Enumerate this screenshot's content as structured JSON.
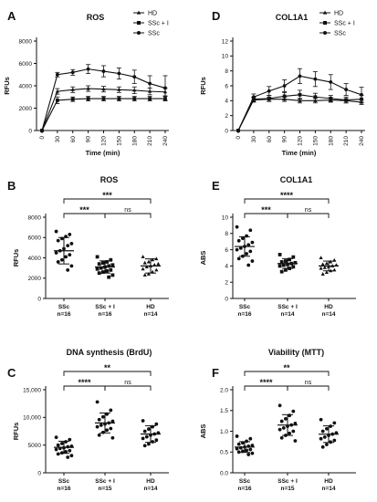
{
  "panels": [
    {
      "letter": "A",
      "chart_data": {
        "type": "line",
        "title": "ROS",
        "xlabel": "Time (min)",
        "ylabel": "RFUs",
        "x": [
          0,
          30,
          60,
          90,
          120,
          150,
          180,
          210,
          240
        ],
        "xticks": [
          "0",
          "30",
          "60",
          "90",
          "120",
          "150",
          "180",
          "210",
          "240"
        ],
        "ylim": [
          0,
          8000
        ],
        "yticks": [
          "0",
          "2000",
          "4000",
          "6000",
          "8000"
        ],
        "legend_position": "top-right",
        "series": [
          {
            "name": "HD",
            "marker": "triangle",
            "values": [
              0,
              3500,
              3650,
              3750,
              3700,
              3650,
              3600,
              3500,
              3450
            ],
            "err": [
              0,
              250,
              250,
              250,
              250,
              250,
              300,
              300,
              350
            ]
          },
          {
            "name": "SSc + I",
            "marker": "square",
            "values": [
              0,
              2700,
              2800,
              2850,
              2850,
              2850,
              2850,
              2850,
              2850
            ],
            "err": [
              0,
              300,
              200,
              200,
              200,
              200,
              200,
              200,
              200
            ]
          },
          {
            "name": "SSc",
            "marker": "circle",
            "values": [
              0,
              5000,
              5200,
              5500,
              5300,
              5100,
              4800,
              4200,
              3800
            ],
            "err": [
              0,
              200,
              250,
              400,
              500,
              500,
              600,
              700,
              1100
            ]
          }
        ]
      }
    },
    {
      "letter": "D",
      "chart_data": {
        "type": "line",
        "title": "COL1A1",
        "xlabel": "Time (min)",
        "ylabel": "RFUs",
        "x": [
          0,
          30,
          60,
          90,
          120,
          150,
          180,
          210,
          240
        ],
        "xticks": [
          "0",
          "30",
          "60",
          "90",
          "120",
          "150",
          "180",
          "210",
          "240"
        ],
        "ylim": [
          0,
          12
        ],
        "yticks": [
          "0",
          "2",
          "4",
          "6",
          "8",
          "10",
          "12"
        ],
        "legend_position": "top-right",
        "series": [
          {
            "name": "HD",
            "marker": "triangle",
            "values": [
              0,
              4.1,
              4.2,
              4.2,
              4.0,
              4.0,
              4.1,
              4.0,
              3.8
            ],
            "err": [
              0,
              0.3,
              0.3,
              0.3,
              0.3,
              0.3,
              0.3,
              0.3,
              0.3
            ]
          },
          {
            "name": "SSc + I",
            "marker": "square",
            "values": [
              0,
              4.2,
              4.3,
              4.6,
              4.8,
              4.5,
              4.3,
              4.1,
              4.2
            ],
            "err": [
              0,
              0.3,
              0.4,
              0.5,
              0.6,
              0.5,
              0.4,
              0.4,
              0.5
            ]
          },
          {
            "name": "SSc",
            "marker": "circle",
            "values": [
              0,
              4.5,
              5.3,
              6.0,
              7.3,
              6.9,
              6.5,
              5.5,
              4.8
            ],
            "err": [
              0,
              0.4,
              0.6,
              0.8,
              1.0,
              1.0,
              1.0,
              0.8,
              1.0
            ]
          }
        ]
      }
    },
    {
      "letter": "B",
      "chart_data": {
        "type": "scatter",
        "title": "ROS",
        "ylabel": "RFUs",
        "ylim": [
          0,
          8000
        ],
        "yticks": [
          "0",
          "2000",
          "4000",
          "6000",
          "8000"
        ],
        "groups": [
          {
            "name": "SSc",
            "n": "n=16",
            "marker": "circle",
            "mean": 4700,
            "sd": 1300,
            "values": [
              6600,
              6300,
              6100,
              5900,
              5700,
              5400,
              5200,
              4900,
              4700,
              4500,
              4300,
              4100,
              3800,
              3600,
              3200,
              2800
            ]
          },
          {
            "name": "SSc + I",
            "n": "n=16",
            "marker": "square",
            "mean": 3100,
            "sd": 600,
            "values": [
              4100,
              3800,
              3600,
              3500,
              3400,
              3300,
              3200,
              3100,
              3000,
              2900,
              2800,
              2700,
              2600,
              2500,
              2300,
              2100
            ]
          },
          {
            "name": "HD",
            "n": "n=14",
            "marker": "triangle",
            "mean": 3200,
            "sd": 700,
            "values": [
              4100,
              3900,
              3800,
              3600,
              3500,
              3400,
              3300,
              3200,
              3100,
              2900,
              2800,
              2600,
              2400,
              2300
            ]
          }
        ],
        "comparisons": [
          {
            "from": 0,
            "to": 1,
            "label": "***",
            "level": 1
          },
          {
            "from": 1,
            "to": 2,
            "label": "ns",
            "level": 1
          },
          {
            "from": 0,
            "to": 2,
            "label": "***",
            "level": 2
          }
        ]
      }
    },
    {
      "letter": "E",
      "chart_data": {
        "type": "scatter",
        "title": "COL1A1",
        "ylabel": "ABS",
        "ylim": [
          0,
          10
        ],
        "yticks": [
          "0",
          "2",
          "4",
          "6",
          "8",
          "10"
        ],
        "groups": [
          {
            "name": "SSc",
            "n": "n=16",
            "marker": "circle",
            "mean": 6.4,
            "sd": 1.2,
            "values": [
              8.8,
              8.4,
              7.7,
              7.4,
              7.1,
              6.9,
              6.6,
              6.4,
              6.2,
              6.0,
              5.8,
              5.5,
              5.2,
              4.9,
              4.6,
              4.1
            ]
          },
          {
            "name": "SSc + I",
            "n": "n=14",
            "marker": "square",
            "mean": 4.3,
            "sd": 0.6,
            "values": [
              5.4,
              5.1,
              4.8,
              4.6,
              4.5,
              4.4,
              4.3,
              4.2,
              4.1,
              4.0,
              3.9,
              3.7,
              3.5,
              3.3
            ]
          },
          {
            "name": "HD",
            "n": "n=14",
            "marker": "triangle",
            "mean": 4.0,
            "sd": 0.6,
            "values": [
              5.0,
              4.7,
              4.5,
              4.3,
              4.2,
              4.1,
              4.0,
              3.9,
              3.8,
              3.7,
              3.5,
              3.4,
              3.2,
              3.0
            ]
          }
        ],
        "comparisons": [
          {
            "from": 0,
            "to": 1,
            "label": "***",
            "level": 1
          },
          {
            "from": 1,
            "to": 2,
            "label": "ns",
            "level": 1
          },
          {
            "from": 0,
            "to": 2,
            "label": "****",
            "level": 2
          }
        ]
      }
    },
    {
      "letter": "C",
      "chart_data": {
        "type": "scatter",
        "title": "DNA synthesis (BrdU)",
        "ylabel": "RFUs",
        "ylim": [
          0,
          15000
        ],
        "yticks": [
          "0",
          "5000",
          "10,000",
          "15,000"
        ],
        "groups": [
          {
            "name": "SSc",
            "n": "n=16",
            "marker": "circle",
            "mean": 4600,
            "sd": 1100,
            "values": [
              6400,
              6000,
              5600,
              5300,
              5000,
              4800,
              4700,
              4500,
              4400,
              4200,
              4000,
              3800,
              3600,
              3400,
              3100,
              2800
            ]
          },
          {
            "name": "SSc + I",
            "n": "n=15",
            "marker": "circle",
            "mean": 9000,
            "sd": 1800,
            "values": [
              12800,
              11300,
              10600,
              10100,
              9600,
              9300,
              9000,
              8800,
              8600,
              8300,
              8000,
              7700,
              7300,
              6800,
              6300
            ]
          },
          {
            "name": "HD",
            "n": "n=14",
            "marker": "circle",
            "mean": 7000,
            "sd": 1500,
            "values": [
              9400,
              8800,
              8300,
              7900,
              7500,
              7200,
              7000,
              6800,
              6500,
              6200,
              5900,
              5600,
              5200,
              4900
            ]
          }
        ],
        "comparisons": [
          {
            "from": 0,
            "to": 1,
            "label": "****",
            "level": 1
          },
          {
            "from": 1,
            "to": 2,
            "label": "ns",
            "level": 1
          },
          {
            "from": 0,
            "to": 2,
            "label": "**",
            "level": 2
          }
        ]
      }
    },
    {
      "letter": "F",
      "chart_data": {
        "type": "scatter",
        "title": "Viability (MTT)",
        "ylabel": "ABS",
        "ylim": [
          0,
          2.0
        ],
        "yticks": [
          "0.0",
          "0.5",
          "1.0",
          "1.5",
          "2.0"
        ],
        "groups": [
          {
            "name": "SSc",
            "n": "n=16",
            "marker": "circle",
            "mean": 0.62,
            "sd": 0.13,
            "values": [
              0.88,
              0.82,
              0.76,
              0.72,
              0.69,
              0.66,
              0.64,
              0.62,
              0.6,
              0.58,
              0.56,
              0.54,
              0.52,
              0.5,
              0.47,
              0.44
            ]
          },
          {
            "name": "SSc + I",
            "n": "n=15",
            "marker": "circle",
            "mean": 1.15,
            "sd": 0.25,
            "values": [
              1.62,
              1.48,
              1.38,
              1.3,
              1.24,
              1.19,
              1.15,
              1.12,
              1.08,
              1.04,
              1.0,
              0.95,
              0.9,
              0.84,
              0.77
            ]
          },
          {
            "name": "HD",
            "n": "n=14",
            "marker": "circle",
            "mean": 0.93,
            "sd": 0.2,
            "values": [
              1.28,
              1.2,
              1.12,
              1.06,
              1.0,
              0.96,
              0.93,
              0.9,
              0.86,
              0.82,
              0.78,
              0.74,
              0.68,
              0.62
            ]
          }
        ],
        "comparisons": [
          {
            "from": 0,
            "to": 1,
            "label": "****",
            "level": 1
          },
          {
            "from": 1,
            "to": 2,
            "label": "ns",
            "level": 1
          },
          {
            "from": 0,
            "to": 2,
            "label": "**",
            "level": 2
          }
        ]
      }
    }
  ]
}
